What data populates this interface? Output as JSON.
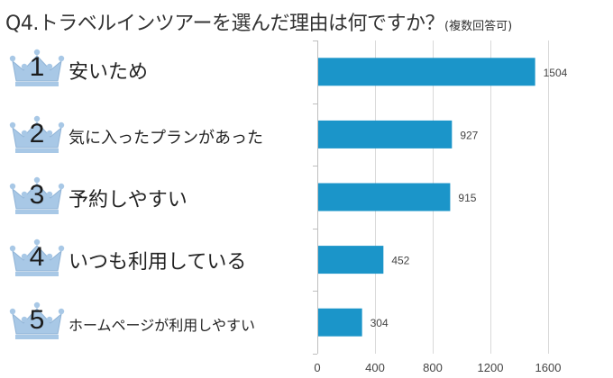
{
  "title": {
    "main": "Q4.トラベルインツアーを選んだ理由は何ですか？",
    "sub": "(複数回答可)"
  },
  "ranks": [
    {
      "rank": "1",
      "label": "安いため"
    },
    {
      "rank": "2",
      "label": "気に入ったプランがあった"
    },
    {
      "rank": "3",
      "label": "予約しやすい"
    },
    {
      "rank": "4",
      "label": "いつも利用している"
    },
    {
      "rank": "5",
      "label": "ホームページが利用しやすい"
    }
  ],
  "colors": {
    "bar": "#1b95c9",
    "crown": "#a8c8e6",
    "grid": "#d9d9d9",
    "axis": "#bfbfbf"
  },
  "icons": [
    "crown-icon"
  ],
  "chart_data": {
    "type": "bar",
    "orientation": "horizontal",
    "categories": [
      "安いため",
      "気に入ったプランがあった",
      "予約しやすい",
      "いつも利用している",
      "ホームページが利用しやすい"
    ],
    "values": [
      1504,
      927,
      915,
      452,
      304
    ],
    "xlim": [
      0,
      1600
    ],
    "xticks": [
      0,
      400,
      800,
      1200,
      1600
    ],
    "grid": true,
    "legend": "none"
  }
}
